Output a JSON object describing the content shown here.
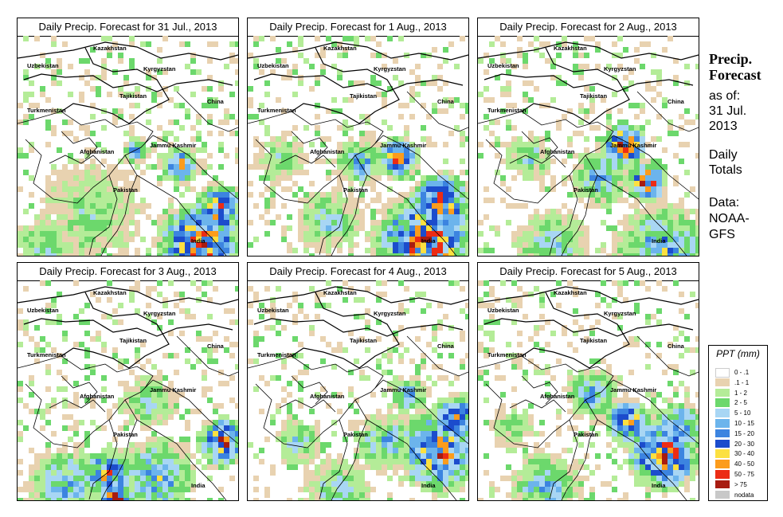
{
  "side": {
    "heading_line1": "Precip.",
    "heading_line2": "Forecast",
    "asof_line1": "as of:",
    "asof_line2": "31 Jul.",
    "asof_line3": "2013",
    "daily_line1": "Daily",
    "daily_line2": "Totals",
    "data_line1": "Data:",
    "data_line2": "NOAA-",
    "data_line3": "GFS"
  },
  "legend": {
    "title": "PPT (mm)",
    "items": [
      {
        "label": "0 - .1",
        "color": "#ffffff"
      },
      {
        "label": ".1 - 1",
        "color": "#e8d2b0"
      },
      {
        "label": "1 - 2",
        "color": "#b4ec98"
      },
      {
        "label": "2 - 5",
        "color": "#6cd86c"
      },
      {
        "label": "5 - 10",
        "color": "#a8d6f4"
      },
      {
        "label": "10 - 15",
        "color": "#6cb4ec"
      },
      {
        "label": "15 - 20",
        "color": "#3c84e0"
      },
      {
        "label": "20 - 30",
        "color": "#1c4ccc"
      },
      {
        "label": "30 - 40",
        "color": "#fce040"
      },
      {
        "label": "40 - 50",
        "color": "#fc9c1c"
      },
      {
        "label": "50 - 75",
        "color": "#ec2c14"
      },
      {
        "label": "> 75",
        "color": "#a81c10"
      },
      {
        "label": "nodata",
        "color": "#c8c8c8"
      }
    ]
  },
  "map_labels": [
    "Kazakhstan",
    "Uzbekistan",
    "Kyrgyzstan",
    "Tajikistan",
    "China",
    "Turkmenistan",
    "Afghanistan",
    "Jammu Kashmir",
    "Pakistan",
    "India"
  ],
  "chart_data": [
    {
      "type": "heatmap",
      "title": "Daily Precip. Forecast for  31 Jul., 2013",
      "units": "mm",
      "qualitative_summary": "Heaviest rain (30-75+ mm) over central India and along the Himalayan foothills of northern India; moderate rain over Jammu Kashmir and northeastern Pakistan; mostly dry over Afghanistan and Central Asia"
    },
    {
      "type": "heatmap",
      "title": "Daily Precip. Forecast for  1 Aug., 2013",
      "units": "mm",
      "qualitative_summary": "Widespread 20-75 mm over central India; heavy bands along the Himalayan foothills and Jammu Kashmir; light rain in eastern Pakistan and Afghanistan"
    },
    {
      "type": "heatmap",
      "title": "Daily Precip. Forecast for  2 Aug., 2013",
      "units": "mm",
      "qualitative_summary": "Intense cells (>75 mm) in Jammu Kashmir and northeast Pakistan; 15-30 mm across southern India; scattered showers in Afghanistan"
    },
    {
      "type": "heatmap",
      "title": "Daily Precip. Forecast for  3 Aug., 2013",
      "units": "mm",
      "qualitative_summary": "Scattered moderate rain across Pakistan and northwest India; heavy cells near the southern coast; Himalayan band continues"
    },
    {
      "type": "heatmap",
      "title": "Daily Precip. Forecast for  4 Aug., 2013",
      "units": "mm",
      "qualitative_summary": "Broad 10-30 mm region over northern India with heavy cells along the foothills; light rain over eastern Afghanistan"
    },
    {
      "type": "heatmap",
      "title": "Daily Precip. Forecast for  5 Aug., 2013",
      "units": "mm",
      "qualitative_summary": "Heavy Himalayan foothill band (30-75 mm) in northern India; scattered showers in Pakistan and Afghanistan; dry over India's south"
    }
  ]
}
